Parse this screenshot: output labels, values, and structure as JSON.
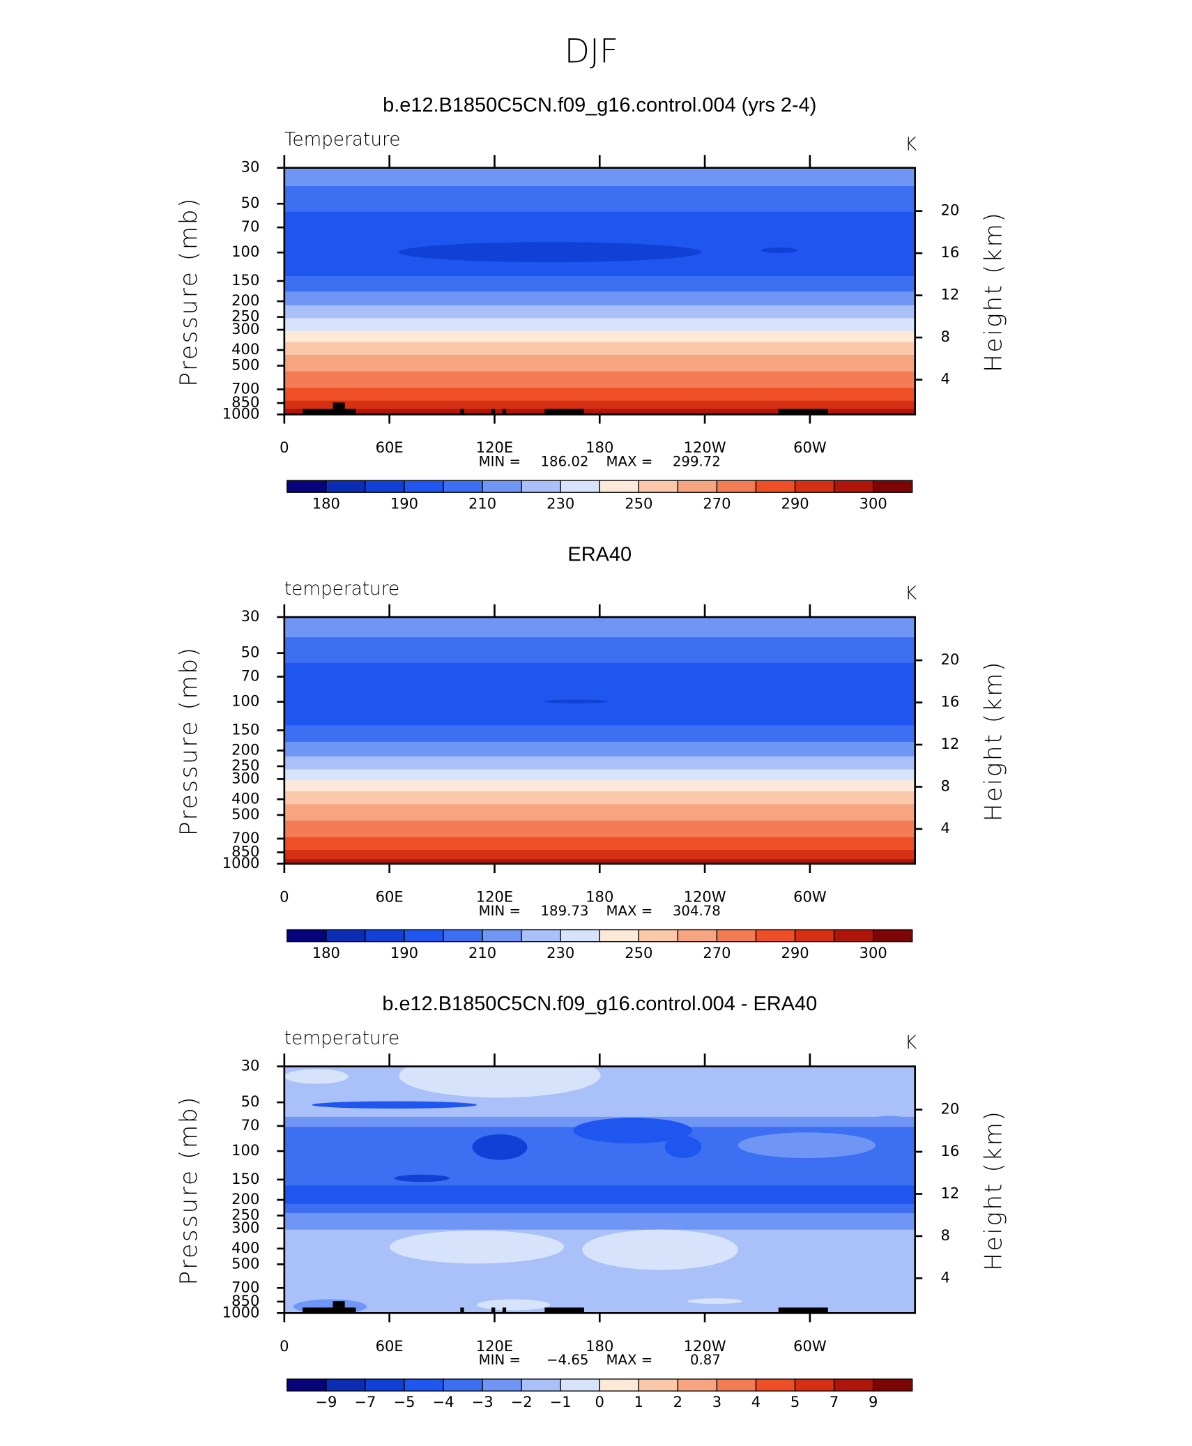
{
  "title": "DJF",
  "chart_data": [
    {
      "type": "contour",
      "title": "b.e12.B1850C5CN.f09_g16.control.004 (yrs 2-4)",
      "variable": "Temperature",
      "units": "K",
      "ylabel": "Pressure (mb)",
      "y2label": "Height (km)",
      "xlim": [
        0,
        360
      ],
      "xticks": [
        0,
        {
          "value": 60,
          "label": "60E"
        },
        {
          "value": 120,
          "label": "120E"
        },
        180,
        {
          "value": 240,
          "label": "120W"
        },
        {
          "value": 300,
          "label": "60W"
        }
      ],
      "ylim": [
        1000,
        30
      ],
      "log_scale": true,
      "yticks": [
        30,
        50,
        70,
        100,
        150,
        200,
        250,
        300,
        400,
        500,
        700,
        850,
        1000
      ],
      "y2lim": [
        0.7,
        24.1
      ],
      "y2ticks": [
        4,
        8,
        12,
        16,
        20
      ],
      "min_label": "MIN =",
      "min": 186.02,
      "max_label": "MAX =",
      "max": 299.72,
      "colorbar": {
        "colors": [
          "#07037a",
          "#0a2db3",
          "#1040d6",
          "#1f56f0",
          "#3c6ff2",
          "#6f95f5",
          "#a9c0f8",
          "#d6e3fb",
          "#fde9d8",
          "#fbc9aa",
          "#f7a581",
          "#f37c55",
          "#ee4f26",
          "#d63014",
          "#b0150a",
          "#7d0505"
        ],
        "labels": [
          180,
          190,
          210,
          230,
          250,
          270,
          290,
          300
        ]
      }
    },
    {
      "type": "contour",
      "title": "ERA40",
      "variable": "temperature",
      "units": "K",
      "ylabel": "Pressure (mb)",
      "y2label": "Height (km)",
      "xlim": [
        0,
        360
      ],
      "xticks": [
        0,
        {
          "value": 60,
          "label": "60E"
        },
        {
          "value": 120,
          "label": "120E"
        },
        180,
        {
          "value": 240,
          "label": "120W"
        },
        {
          "value": 300,
          "label": "60W"
        }
      ],
      "ylim": [
        1000,
        30
      ],
      "log_scale": true,
      "yticks": [
        30,
        50,
        70,
        100,
        150,
        200,
        250,
        300,
        400,
        500,
        700,
        850,
        1000
      ],
      "y2lim": [
        0.7,
        24.1
      ],
      "y2ticks": [
        4,
        8,
        12,
        16,
        20
      ],
      "min_label": "MIN =",
      "min": 189.73,
      "max_label": "MAX =",
      "max": 304.78,
      "colorbar": {
        "colors": [
          "#07037a",
          "#0a2db3",
          "#1040d6",
          "#1f56f0",
          "#3c6ff2",
          "#6f95f5",
          "#a9c0f8",
          "#d6e3fb",
          "#fde9d8",
          "#fbc9aa",
          "#f7a581",
          "#f37c55",
          "#ee4f26",
          "#d63014",
          "#b0150a",
          "#7d0505"
        ],
        "labels": [
          180,
          190,
          210,
          230,
          250,
          270,
          290,
          300
        ]
      }
    },
    {
      "type": "contour",
      "title": "b.e12.B1850C5CN.f09_g16.control.004 - ERA40",
      "variable": "temperature",
      "units": "K",
      "ylabel": "Pressure (mb)",
      "y2label": "Height (km)",
      "xlim": [
        0,
        360
      ],
      "xticks": [
        0,
        {
          "value": 60,
          "label": "60E"
        },
        {
          "value": 120,
          "label": "120E"
        },
        180,
        {
          "value": 240,
          "label": "120W"
        },
        {
          "value": 300,
          "label": "60W"
        }
      ],
      "ylim": [
        1000,
        30
      ],
      "log_scale": true,
      "yticks": [
        30,
        50,
        70,
        100,
        150,
        200,
        250,
        300,
        400,
        500,
        700,
        850,
        1000
      ],
      "y2lim": [
        0.7,
        24.1
      ],
      "y2ticks": [
        4,
        8,
        12,
        16,
        20
      ],
      "min_label": "MIN =",
      "min": {
        "value": -4.65,
        "label": "−4.65"
      },
      "max_label": "MAX =",
      "max": 0.87,
      "colorbar": {
        "colors": [
          "#07037a",
          "#0a2db3",
          "#1040d6",
          "#1f56f0",
          "#3c6ff2",
          "#6f95f5",
          "#a9c0f8",
          "#d6e3fb",
          "#fde9d8",
          "#fbc9aa",
          "#f7a581",
          "#f37c55",
          "#ee4f26",
          "#d63014",
          "#b0150a",
          "#7d0505"
        ],
        "labels": [
          {
            "value": -9,
            "label": "−9"
          },
          {
            "value": -7,
            "label": "−7"
          },
          {
            "value": -5,
            "label": "−5"
          },
          {
            "value": -4,
            "label": "−4"
          },
          {
            "value": -3,
            "label": "−3"
          },
          {
            "value": -2,
            "label": "−2"
          },
          {
            "value": -1,
            "label": "−1"
          },
          0,
          1,
          2,
          3,
          4,
          5,
          7,
          9
        ]
      }
    }
  ]
}
